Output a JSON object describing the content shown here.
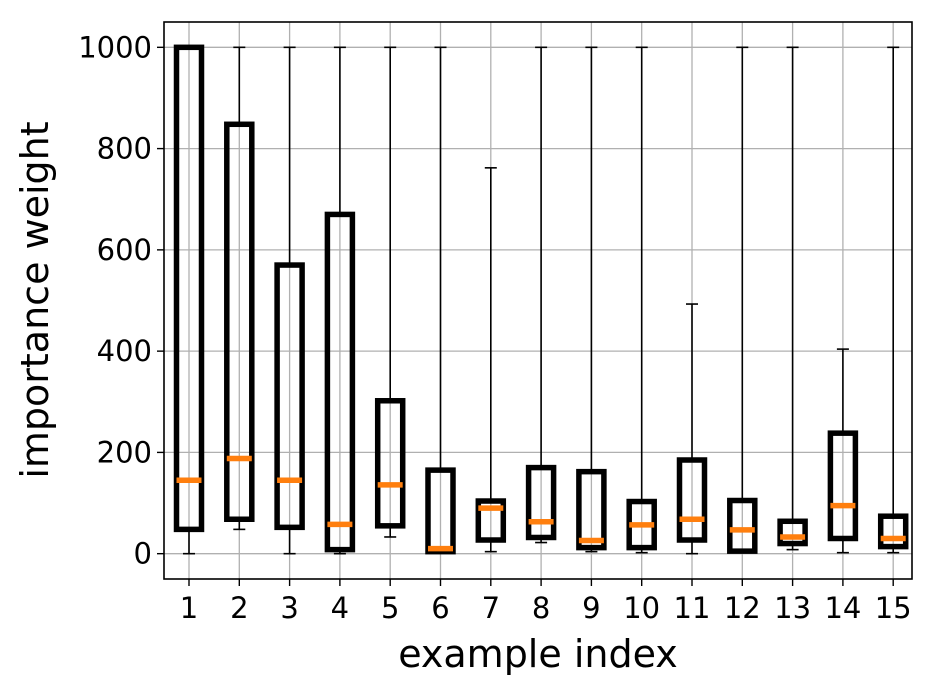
{
  "chart_data": {
    "type": "box",
    "xlabel": "example index",
    "ylabel": "importance weight",
    "categories": [
      "1",
      "2",
      "3",
      "4",
      "5",
      "6",
      "7",
      "8",
      "9",
      "10",
      "11",
      "12",
      "13",
      "14",
      "15"
    ],
    "ylim": [
      -50,
      1050
    ],
    "yticks": [
      0,
      200,
      400,
      600,
      800,
      1000
    ],
    "grid": true,
    "colors": {
      "box": "#000000",
      "median": "#ff7f0e",
      "grid": "#b0b0b0",
      "whisker": "#000000"
    },
    "boxes": [
      {
        "whislo": 0,
        "q1": 48,
        "med": 145,
        "q3": 1000,
        "whishi": 1000
      },
      {
        "whislo": 48,
        "q1": 68,
        "med": 188,
        "q3": 848,
        "whishi": 1000
      },
      {
        "whislo": 0,
        "q1": 52,
        "med": 145,
        "q3": 570,
        "whishi": 1000
      },
      {
        "whislo": 0,
        "q1": 8,
        "med": 58,
        "q3": 670,
        "whishi": 1000
      },
      {
        "whislo": 33,
        "q1": 55,
        "med": 136,
        "q3": 302,
        "whishi": 1000
      },
      {
        "whislo": 4,
        "q1": 4,
        "med": 10,
        "q3": 165,
        "whishi": 1000
      },
      {
        "whislo": 4,
        "q1": 27,
        "med": 90,
        "q3": 104,
        "whishi": 762
      },
      {
        "whislo": 22,
        "q1": 32,
        "med": 63,
        "q3": 170,
        "whishi": 1000
      },
      {
        "whislo": 4,
        "q1": 12,
        "med": 26,
        "q3": 162,
        "whishi": 1000
      },
      {
        "whislo": 2,
        "q1": 12,
        "med": 57,
        "q3": 103,
        "whishi": 1000
      },
      {
        "whislo": 0,
        "q1": 27,
        "med": 68,
        "q3": 185,
        "whishi": 493
      },
      {
        "whislo": 4,
        "q1": 5,
        "med": 47,
        "q3": 105,
        "whishi": 1000
      },
      {
        "whislo": 8,
        "q1": 20,
        "med": 33,
        "q3": 64,
        "whishi": 1000
      },
      {
        "whislo": 2,
        "q1": 30,
        "med": 95,
        "q3": 238,
        "whishi": 404
      },
      {
        "whislo": 2,
        "q1": 14,
        "med": 30,
        "q3": 74,
        "whishi": 1000
      }
    ]
  }
}
